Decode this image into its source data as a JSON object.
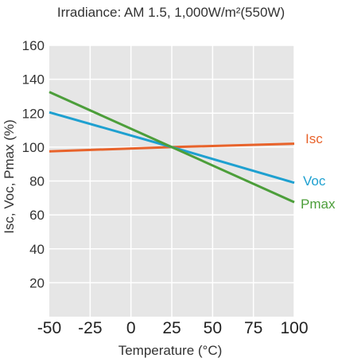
{
  "chart_data": {
    "type": "line",
    "title": "Irradiance: AM 1.5, 1,000W/m²(550W)",
    "xlabel": "Temperature (°C)",
    "ylabel": "Isc, Voc, Pmax (%)",
    "xlim": [
      -50,
      100
    ],
    "ylim": [
      0,
      160
    ],
    "x_ticks": [
      -50,
      -25,
      0,
      25,
      50,
      75,
      100
    ],
    "x_tick_labels": [
      "-50",
      "-25",
      "0",
      "25",
      "50",
      "75",
      "100"
    ],
    "y_ticks": [
      20,
      40,
      60,
      80,
      100,
      120,
      140,
      160
    ],
    "y_tick_labels": [
      "20",
      "40",
      "60",
      "80",
      "100",
      "120",
      "140",
      "160"
    ],
    "grid": true,
    "legend": "inline-right",
    "background": "#e6e6e6",
    "series": [
      {
        "name": "Isc",
        "color": "#e8632b",
        "x": [
          -50,
          25,
          100
        ],
        "y": [
          97.5,
          100,
          102
        ]
      },
      {
        "name": "Voc",
        "color": "#1ea0d0",
        "x": [
          -50,
          25,
          100
        ],
        "y": [
          120.5,
          100,
          79
        ]
      },
      {
        "name": "Pmax",
        "color": "#4c9e3a",
        "x": [
          -50,
          25,
          100
        ],
        "y": [
          132.5,
          100,
          67.5
        ]
      }
    ]
  }
}
